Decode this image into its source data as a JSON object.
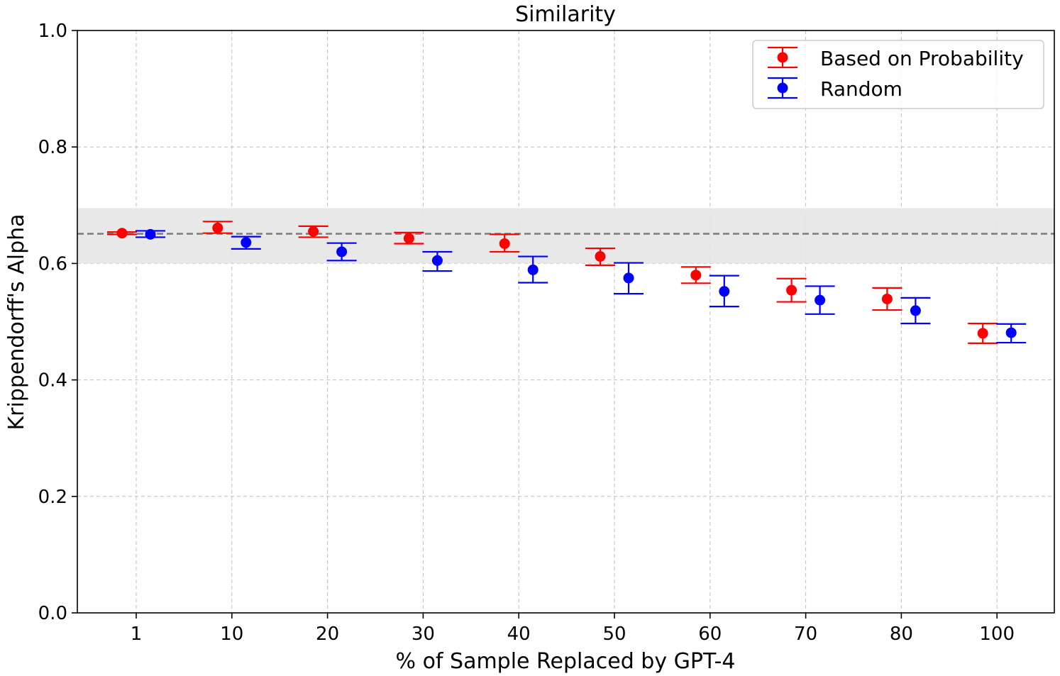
{
  "chart_data": {
    "type": "scatter",
    "subtype": "errorbar",
    "title": "Similarity",
    "xlabel": "% of Sample Replaced by GPT-4",
    "ylabel": "Krippendorff's Alpha",
    "ylim": [
      0.0,
      1.0
    ],
    "yticks": [
      "0.0",
      "0.2",
      "0.4",
      "0.6",
      "0.8",
      "1.0"
    ],
    "categories": [
      "1",
      "10",
      "20",
      "30",
      "40",
      "50",
      "60",
      "70",
      "80",
      "100"
    ],
    "grid": true,
    "legend_position": "top-right",
    "baseline": {
      "value": 0.651,
      "band_low": 0.6,
      "band_high": 0.695,
      "color": "#808080",
      "band_color": "#e6e6e6"
    },
    "series": [
      {
        "name": "Based on Probability",
        "color": "#ff0000",
        "values": [
          0.652,
          0.661,
          0.655,
          0.643,
          0.634,
          0.612,
          0.58,
          0.554,
          0.539,
          0.48
        ],
        "err_low": [
          0.65,
          0.652,
          0.645,
          0.634,
          0.62,
          0.597,
          0.566,
          0.534,
          0.52,
          0.463
        ],
        "err_high": [
          0.654,
          0.672,
          0.664,
          0.653,
          0.65,
          0.626,
          0.594,
          0.574,
          0.558,
          0.497
        ]
      },
      {
        "name": "Random",
        "color": "#0000ff",
        "values": [
          0.65,
          0.636,
          0.62,
          0.605,
          0.589,
          0.575,
          0.552,
          0.537,
          0.519,
          0.481
        ],
        "err_low": [
          0.645,
          0.625,
          0.605,
          0.587,
          0.567,
          0.548,
          0.526,
          0.513,
          0.497,
          0.464
        ],
        "err_high": [
          0.656,
          0.646,
          0.635,
          0.62,
          0.612,
          0.601,
          0.579,
          0.561,
          0.541,
          0.496
        ]
      }
    ]
  }
}
